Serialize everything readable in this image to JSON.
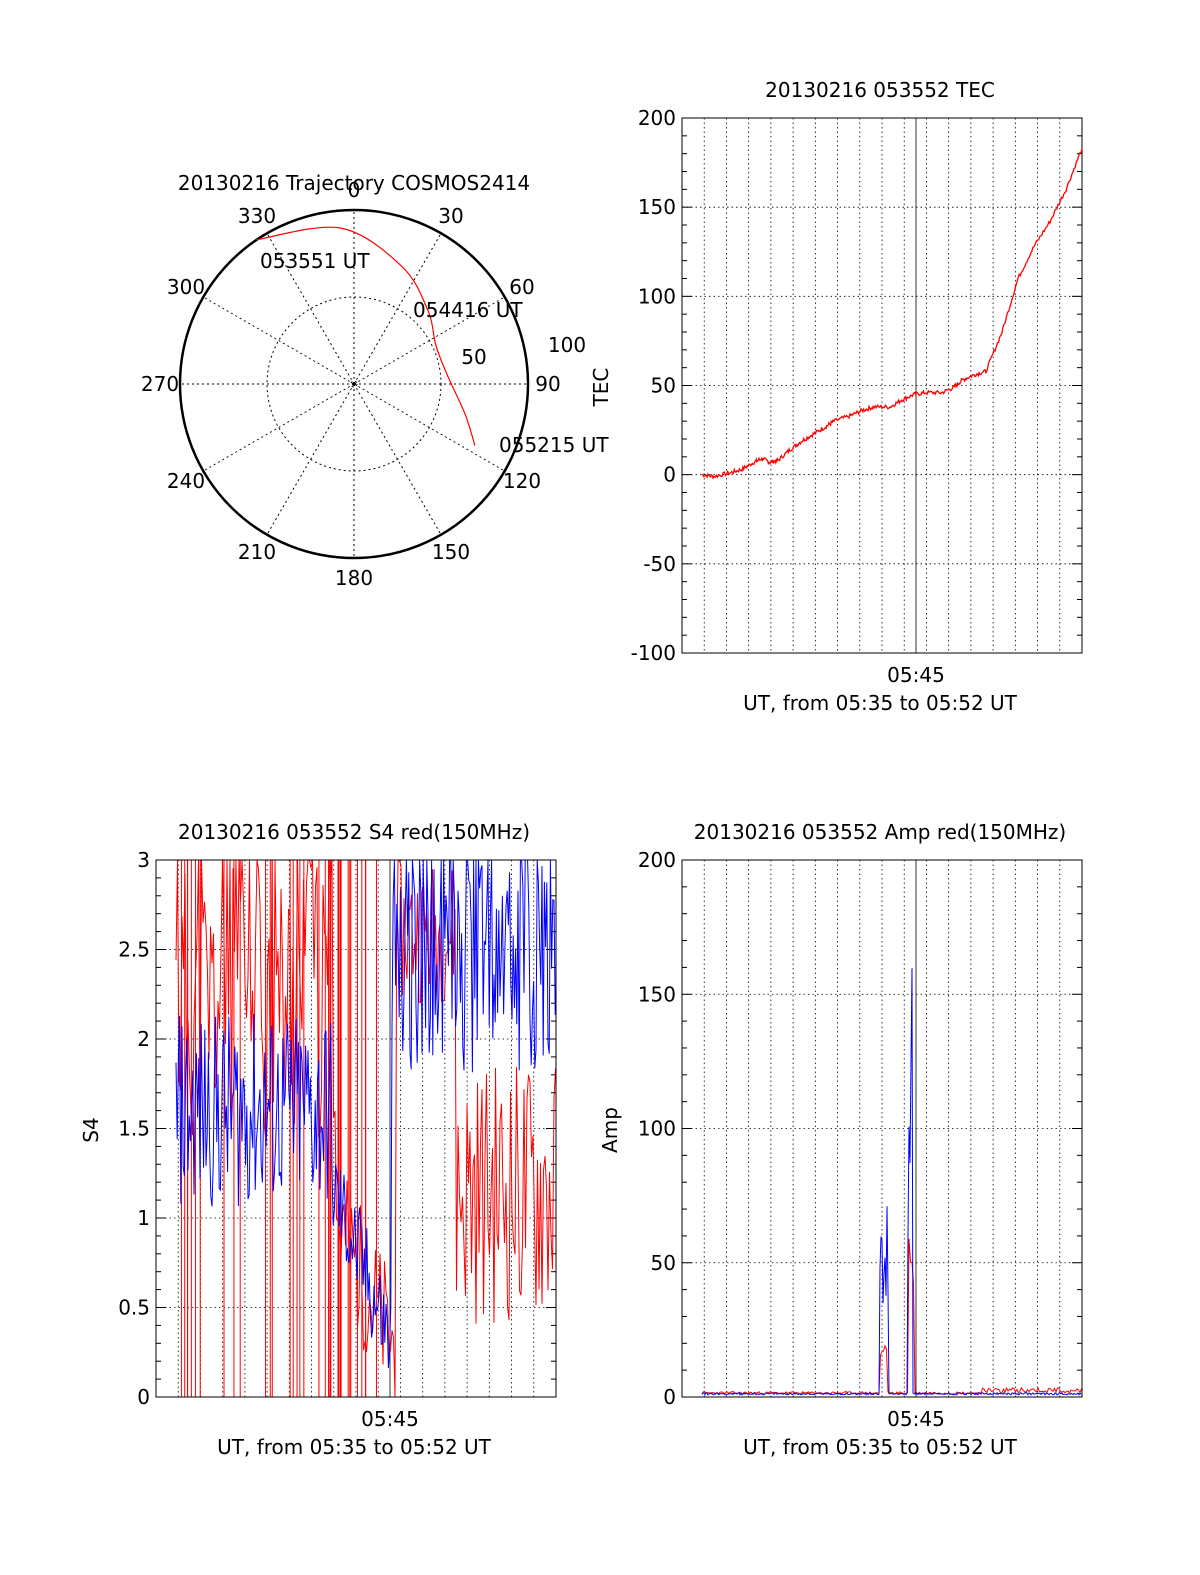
{
  "chart_data": [
    {
      "type": "polar",
      "title": "20130216 Trajectory COSMOS2414",
      "azimuth_labels": [
        "0",
        "30",
        "60",
        "90",
        "120",
        "150",
        "180",
        "210",
        "240",
        "270",
        "300",
        "330"
      ],
      "radial_labels": [
        "50",
        "100"
      ],
      "radial_axis_label": "TEC",
      "series": [
        {
          "color": "#ff0000",
          "points": [
            {
              "az": 326,
              "el": 100
            },
            {
              "az": 355,
              "el": 90
            },
            {
              "az": 22,
              "el": 73
            },
            {
              "az": 45,
              "el": 60
            },
            {
              "az": 65,
              "el": 52
            },
            {
              "az": 85,
              "el": 54
            },
            {
              "az": 105,
              "el": 66
            },
            {
              "az": 117,
              "el": 78
            }
          ]
        }
      ],
      "annotations": [
        {
          "text": "053551 UT",
          "az": 326,
          "el": 100
        },
        {
          "text": "054416 UT",
          "az": 65,
          "el": 52
        },
        {
          "text": "055215 UT",
          "az": 117,
          "el": 78
        }
      ]
    },
    {
      "type": "line",
      "title": "20130216 053552 TEC",
      "xlabel": "UT, from 05:35 to 05:52 UT",
      "ylabel": "",
      "xtick_label": "05:45",
      "ylim": [
        -100,
        200
      ],
      "yticks": [
        "-100",
        "-50",
        "0",
        "50",
        "100",
        "150",
        "200"
      ],
      "series": [
        {
          "color": "#ff0000",
          "x": [
            0.05,
            0.08,
            0.12,
            0.15,
            0.18,
            0.2,
            0.22,
            0.24,
            0.27,
            0.3,
            0.33,
            0.36,
            0.38,
            0.42,
            0.45,
            0.48,
            0.52,
            0.55,
            0.58,
            0.61,
            0.65,
            0.68,
            0.7,
            0.73,
            0.76,
            0.8,
            0.84,
            0.88,
            0.92,
            0.96,
            1.0
          ],
          "y": [
            0,
            -1,
            1,
            3,
            7,
            9,
            7,
            8,
            14,
            19,
            23,
            27,
            30,
            33,
            36,
            38,
            38,
            42,
            45,
            46,
            46,
            49,
            53,
            56,
            58,
            80,
            110,
            128,
            142,
            160,
            183
          ]
        }
      ]
    },
    {
      "type": "line",
      "title": "20130216 053552 S4 red(150MHz)",
      "xlabel": "UT, from 05:35 to 05:52 UT",
      "ylabel": "S4",
      "xtick_label": "05:45",
      "ylim": [
        0,
        3
      ],
      "yticks": [
        "0",
        "0.5",
        "1",
        "1.5",
        "2",
        "2.5",
        "3"
      ],
      "series": [
        {
          "color": "#ff0000",
          "x": [],
          "y": []
        },
        {
          "color": "#0000ff",
          "x": [],
          "y": []
        }
      ]
    },
    {
      "type": "line",
      "title": "20130216 053552 Amp red(150MHz)",
      "xlabel": "UT, from 05:35 to 05:52 UT",
      "ylabel": "Amp",
      "xtick_label": "05:45",
      "ylim": [
        0,
        200
      ],
      "yticks": [
        "0",
        "50",
        "100",
        "150",
        "200"
      ],
      "series": [
        {
          "color": "#ff0000",
          "x": [],
          "y": []
        },
        {
          "color": "#0000ff",
          "x": [],
          "y": []
        }
      ]
    }
  ]
}
